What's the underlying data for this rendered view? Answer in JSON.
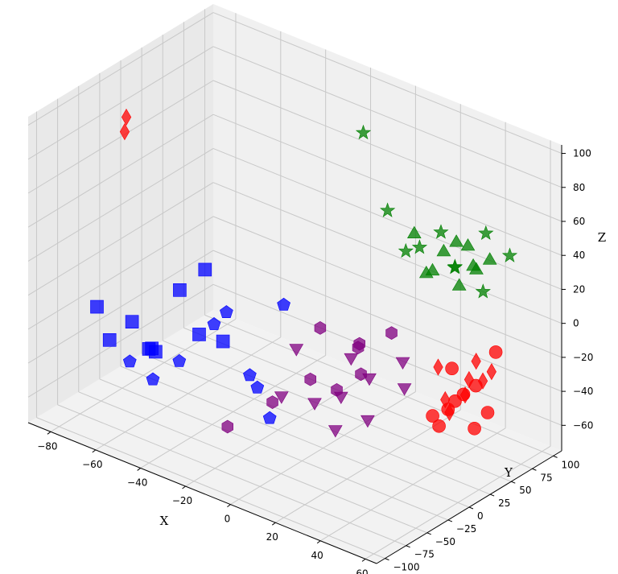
{
  "chart_data": {
    "type": "scatter3d",
    "title": "",
    "axes": {
      "x": {
        "label": "X",
        "ticks": [
          -80,
          -60,
          -40,
          -20,
          0,
          20,
          40,
          60
        ],
        "range": [
          -90,
          65
        ]
      },
      "y": {
        "label": "Y",
        "ticks": [
          -100,
          -75,
          -50,
          -25,
          0,
          25,
          50,
          75,
          100
        ],
        "range": [
          -110,
          110
        ]
      },
      "z": {
        "label": "Z",
        "ticks": [
          -60,
          -40,
          -20,
          0,
          20,
          40,
          60,
          80,
          100
        ],
        "range": [
          -75,
          105
        ]
      }
    },
    "grid": true,
    "legend": "none",
    "groups": [
      {
        "color": "#0000ff",
        "marker": "square",
        "points": [
          [
            -42,
            -35,
            -20
          ],
          [
            -58,
            -72,
            -10
          ],
          [
            -52,
            -60,
            -28
          ],
          [
            -48,
            -42,
            5
          ],
          [
            -62,
            -88,
            -18
          ],
          [
            -45,
            -20,
            12
          ],
          [
            -58,
            -52,
            -32
          ],
          [
            -65,
            -95,
            2
          ],
          [
            -50,
            -70,
            -22
          ],
          [
            -40,
            -12,
            -30
          ]
        ]
      },
      {
        "color": "#0000ff",
        "marker": "pentagon",
        "points": [
          [
            -28,
            -40,
            2
          ],
          [
            -10,
            -20,
            10
          ],
          [
            -62,
            -64,
            -38
          ],
          [
            -35,
            -36,
            -10
          ],
          [
            -12,
            -55,
            -22
          ],
          [
            -45,
            -82,
            -34
          ],
          [
            -18,
            -30,
            -40
          ],
          [
            -5,
            -50,
            -45
          ],
          [
            -40,
            -64,
            -26
          ]
        ]
      },
      {
        "color": "#800080",
        "marker": "triangle-down",
        "points": [
          [
            -10,
            -5,
            -20
          ],
          [
            5,
            20,
            -25
          ],
          [
            15,
            15,
            -30
          ],
          [
            8,
            0,
            -40
          ],
          [
            25,
            30,
            -35
          ],
          [
            0,
            -10,
            -45
          ],
          [
            18,
            5,
            -50
          ],
          [
            10,
            -12,
            -55
          ],
          [
            28,
            20,
            -15
          ],
          [
            -8,
            -28,
            -40
          ]
        ]
      },
      {
        "color": "#800080",
        "marker": "hexagon",
        "points": [
          [
            -5,
            10,
            -10
          ],
          [
            10,
            15,
            -15
          ],
          [
            20,
            28,
            -5
          ],
          [
            5,
            30,
            -20
          ],
          [
            15,
            5,
            -25
          ],
          [
            0,
            -15,
            -30
          ],
          [
            -15,
            -20,
            -50
          ],
          [
            8,
            -5,
            -35
          ],
          [
            -20,
            -60,
            -55
          ]
        ]
      },
      {
        "color": "#008000",
        "marker": "star",
        "points": [
          [
            -12,
            80,
            80
          ],
          [
            10,
            50,
            55
          ],
          [
            30,
            60,
            50
          ],
          [
            50,
            60,
            60
          ],
          [
            25,
            48,
            42
          ],
          [
            40,
            50,
            38
          ],
          [
            55,
            75,
            45
          ],
          [
            20,
            45,
            38
          ],
          [
            45,
            70,
            20
          ],
          [
            38,
            55,
            35
          ]
        ]
      },
      {
        "color": "#008000",
        "marker": "triangle-up",
        "points": [
          [
            20,
            55,
            45
          ],
          [
            30,
            50,
            30
          ],
          [
            35,
            65,
            45
          ],
          [
            42,
            60,
            48
          ],
          [
            48,
            70,
            40
          ],
          [
            50,
            45,
            45
          ],
          [
            40,
            55,
            25
          ],
          [
            45,
            62,
            35
          ],
          [
            28,
            48,
            28
          ],
          [
            32,
            58,
            40
          ]
        ]
      },
      {
        "color": "#ff0000",
        "marker": "thin-diamond",
        "points": [
          [
            -80,
            -20,
            83
          ],
          [
            -80,
            -22,
            75
          ],
          [
            55,
            35,
            -5
          ],
          [
            40,
            30,
            -15
          ],
          [
            50,
            40,
            -20
          ],
          [
            45,
            25,
            -30
          ],
          [
            60,
            40,
            -10
          ],
          [
            52,
            30,
            -25
          ],
          [
            48,
            22,
            -35
          ],
          [
            58,
            35,
            -15
          ]
        ]
      },
      {
        "color": "#ff0000",
        "marker": "circle",
        "points": [
          [
            60,
            45,
            0
          ],
          [
            48,
            25,
            -10
          ],
          [
            55,
            20,
            -20
          ],
          [
            50,
            15,
            -30
          ],
          [
            45,
            10,
            -35
          ],
          [
            58,
            25,
            -40
          ],
          [
            62,
            30,
            -30
          ],
          [
            52,
            18,
            -25
          ],
          [
            56,
            32,
            -18
          ],
          [
            46,
            15,
            -42
          ]
        ]
      }
    ]
  }
}
